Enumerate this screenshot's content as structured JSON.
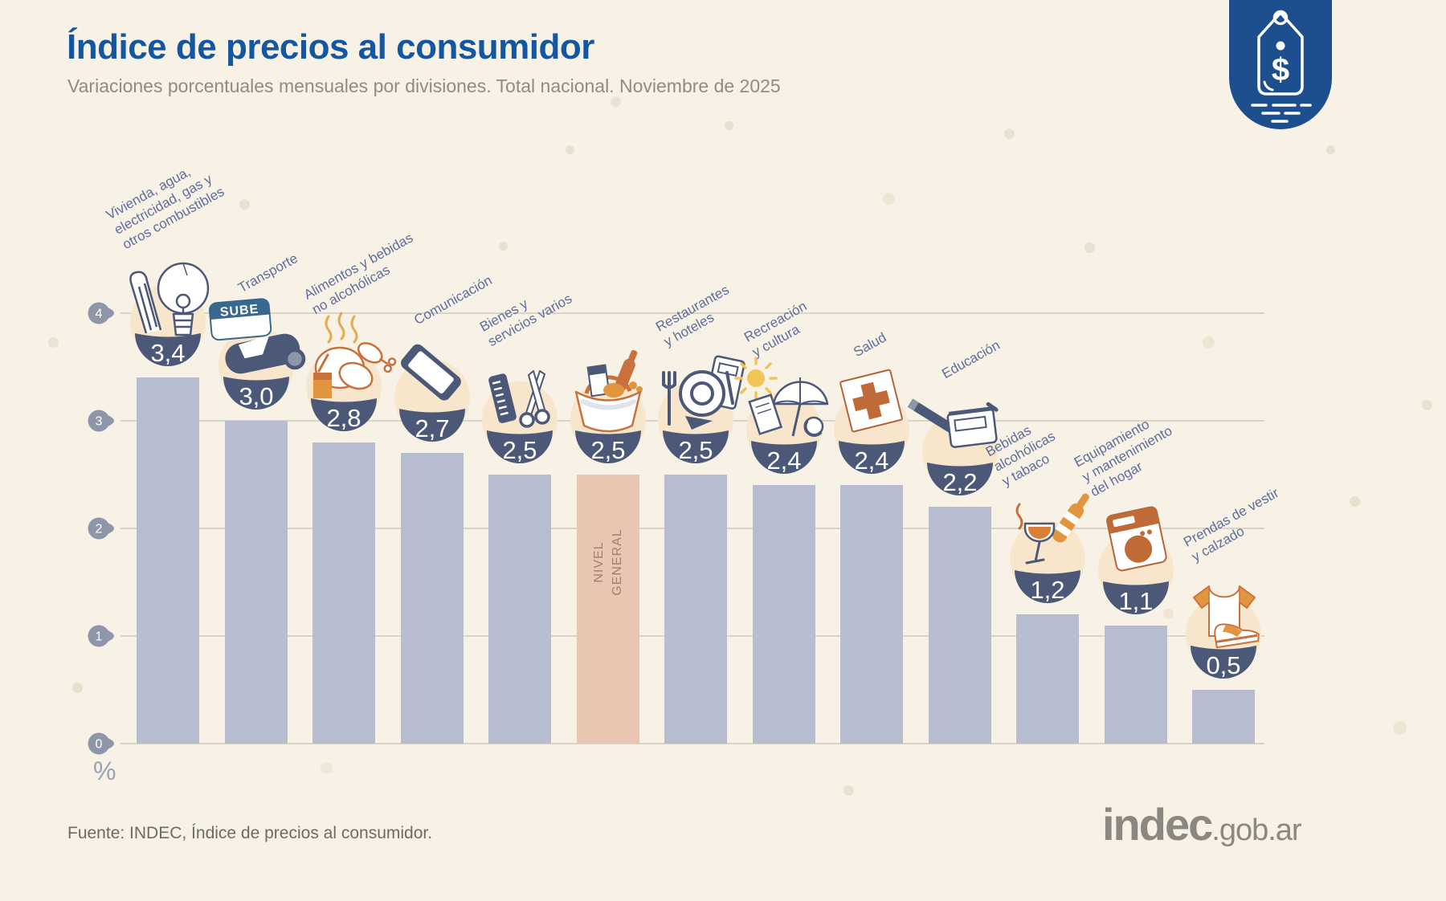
{
  "header": {
    "title": "Índice de precios al consumidor",
    "subtitle": "Variaciones porcentuales mensuales por divisiones. Total nacional. Noviembre de 2025"
  },
  "badge": {
    "currency_symbol": "$"
  },
  "axis": {
    "ticks": [
      "4",
      "3",
      "2",
      "1",
      "0"
    ],
    "unit_label": "%"
  },
  "icons_text": {
    "sube_card_text": "SUBE"
  },
  "footer": {
    "source": "Fuente: INDEC, Índice de precios al consumidor.",
    "logo_main": "indec",
    "logo_suffix": ".gob.ar"
  },
  "chart_data": {
    "type": "bar",
    "title": "Índice de precios al consumidor",
    "subtitle": "Variaciones porcentuales mensuales por divisiones. Total nacional. Noviembre de 2025",
    "ylabel": "%",
    "ylim": [
      0,
      4
    ],
    "grid": true,
    "categories": [
      "Vivienda, agua, electricidad, gas y otros combustibles",
      "Transporte",
      "Alimentos y bebidas no alcohólicas",
      "Comunicación",
      "Bienes y servicios varios",
      "NIVEL GENERAL",
      "Restaurantes y hoteles",
      "Recreación y cultura",
      "Salud",
      "Educación",
      "Bebidas alcohólicas y tabaco",
      "Equipamiento y mantenimiento del hogar",
      "Prendas de vestir y calzado"
    ],
    "values": [
      3.4,
      3.0,
      2.8,
      2.7,
      2.5,
      2.5,
      2.5,
      2.4,
      2.4,
      2.2,
      1.2,
      1.1,
      0.5
    ],
    "bars": [
      {
        "label_lines": [
          "Vivienda, agua,",
          "electricidad, gas y",
          "otros combustibles"
        ],
        "value": 3.4,
        "display_value": "3,4",
        "icon": "housing",
        "highlight": false
      },
      {
        "label_lines": [
          "Transporte"
        ],
        "value": 3.0,
        "display_value": "3,0",
        "icon": "transport",
        "highlight": false
      },
      {
        "label_lines": [
          "Alimentos y bebidas",
          "no alcohólicas"
        ],
        "value": 2.8,
        "display_value": "2,8",
        "icon": "food",
        "highlight": false
      },
      {
        "label_lines": [
          "Comunicación"
        ],
        "value": 2.7,
        "display_value": "2,7",
        "icon": "communication",
        "highlight": false
      },
      {
        "label_lines": [
          "Bienes y",
          "servicios varios"
        ],
        "value": 2.5,
        "display_value": "2,5",
        "icon": "goods",
        "highlight": false
      },
      {
        "label_lines": [
          "NIVEL",
          "GENERAL"
        ],
        "value": 2.5,
        "display_value": "2,5",
        "icon": "basket",
        "highlight": true,
        "label_inside_bar": true
      },
      {
        "label_lines": [
          "Restaurantes",
          "y hoteles"
        ],
        "value": 2.5,
        "display_value": "2,5",
        "icon": "restaurant",
        "highlight": false
      },
      {
        "label_lines": [
          "Recreación",
          "y cultura"
        ],
        "value": 2.4,
        "display_value": "2,4",
        "icon": "recreation",
        "highlight": false
      },
      {
        "label_lines": [
          "Salud"
        ],
        "value": 2.4,
        "display_value": "2,4",
        "icon": "health",
        "highlight": false
      },
      {
        "label_lines": [
          "Educación"
        ],
        "value": 2.2,
        "display_value": "2,2",
        "icon": "education",
        "highlight": false
      },
      {
        "label_lines": [
          "Bebidas",
          "alcohólicas",
          "y tabaco"
        ],
        "value": 1.2,
        "display_value": "1,2",
        "icon": "alcohol",
        "highlight": false
      },
      {
        "label_lines": [
          "Equipamiento",
          "y mantenimiento",
          "del hogar"
        ],
        "value": 1.1,
        "display_value": "1,1",
        "icon": "home",
        "highlight": false
      },
      {
        "label_lines": [
          "Prendas de vestir",
          "y calzado"
        ],
        "value": 0.5,
        "display_value": "0,5",
        "icon": "clothing",
        "highlight": false
      }
    ],
    "colors": {
      "bar": "#b6bdd0",
      "highlight_bar": "#e9c6b2",
      "bowl": "#4c5878",
      "bowl_value_text": "#ffffff",
      "category_label": "#5d6d9c",
      "highlight_inner_label": "#a3806d",
      "gridline": "#d9d4c6",
      "tick_marker": "#8e96aa",
      "icon_cream_circle": "#f7e6cb",
      "accent_orange": "#c9713d",
      "accent_orange_fill": "#e1953f",
      "accent_yellow": "#f0c455",
      "title_blue": "#1356a2",
      "badge_blue": "#1d4f8f"
    }
  }
}
